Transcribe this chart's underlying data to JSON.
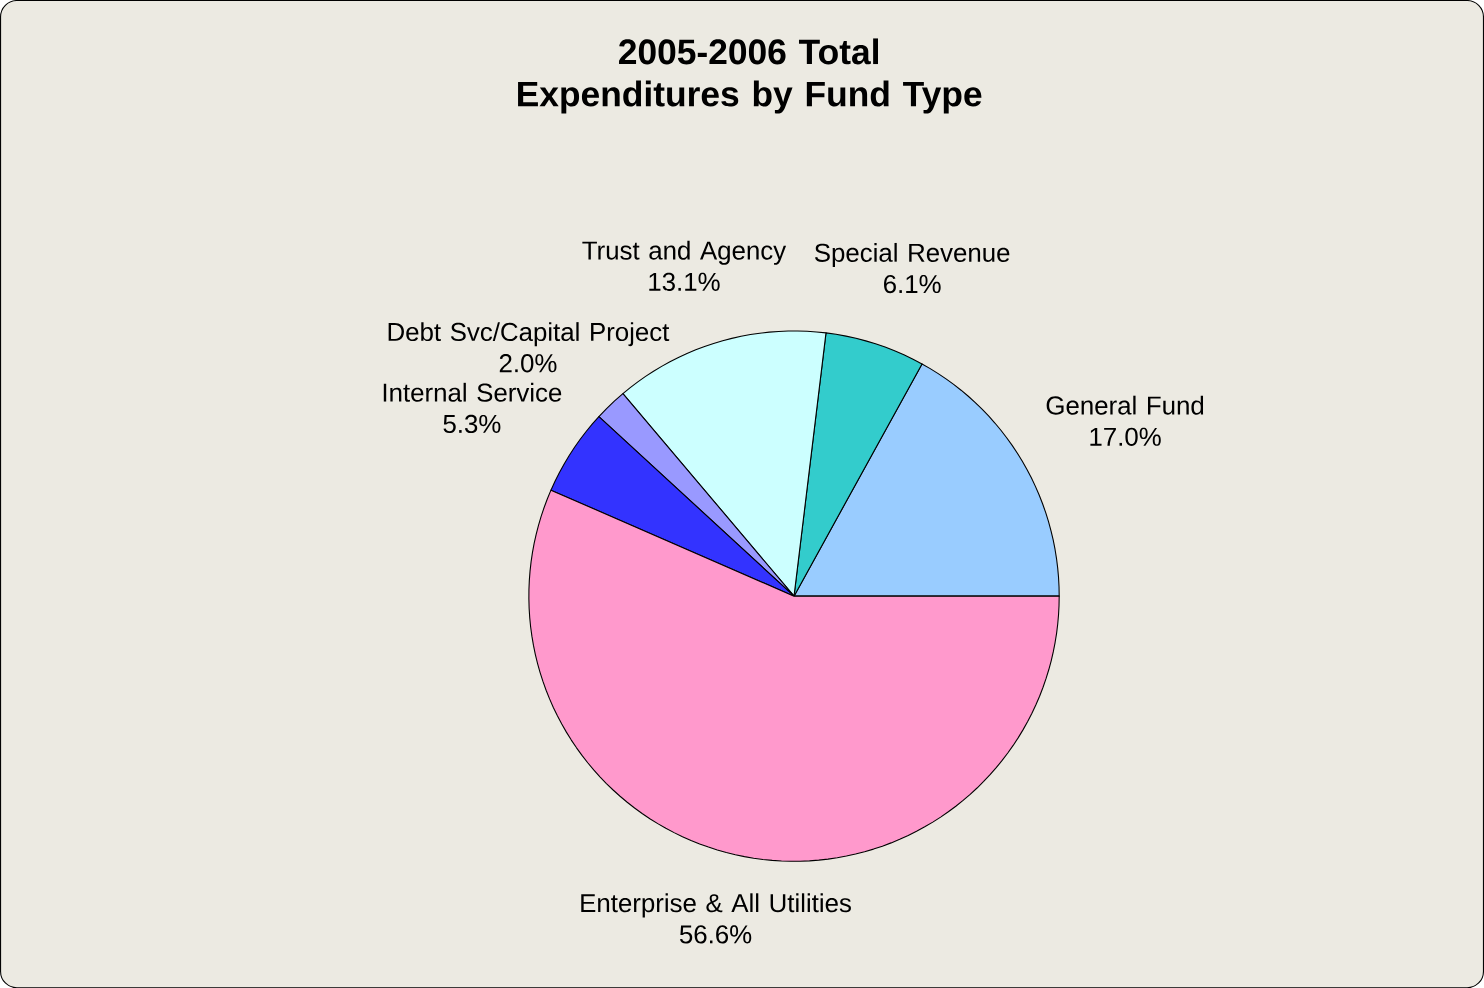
{
  "chart_data": {
    "type": "pie",
    "title": "2005-2006 Total Expenditures by Fund Type",
    "categories": [
      "General Fund",
      "Special Revenue",
      "Trust and Agency",
      "Debt Svc/Capital Project",
      "Internal Service",
      "Enterprise & All Utilities"
    ],
    "values": [
      17.0,
      6.1,
      13.1,
      2.0,
      5.3,
      56.6
    ],
    "value_labels": [
      "17.0%",
      "6.1%",
      "13.1%",
      "2.0%",
      "5.3%",
      "56.6%"
    ],
    "colors": [
      "#99ccff",
      "#33cccc",
      "#ccffff",
      "#9999ff",
      "#3333ff",
      "#ff99cc"
    ]
  }
}
